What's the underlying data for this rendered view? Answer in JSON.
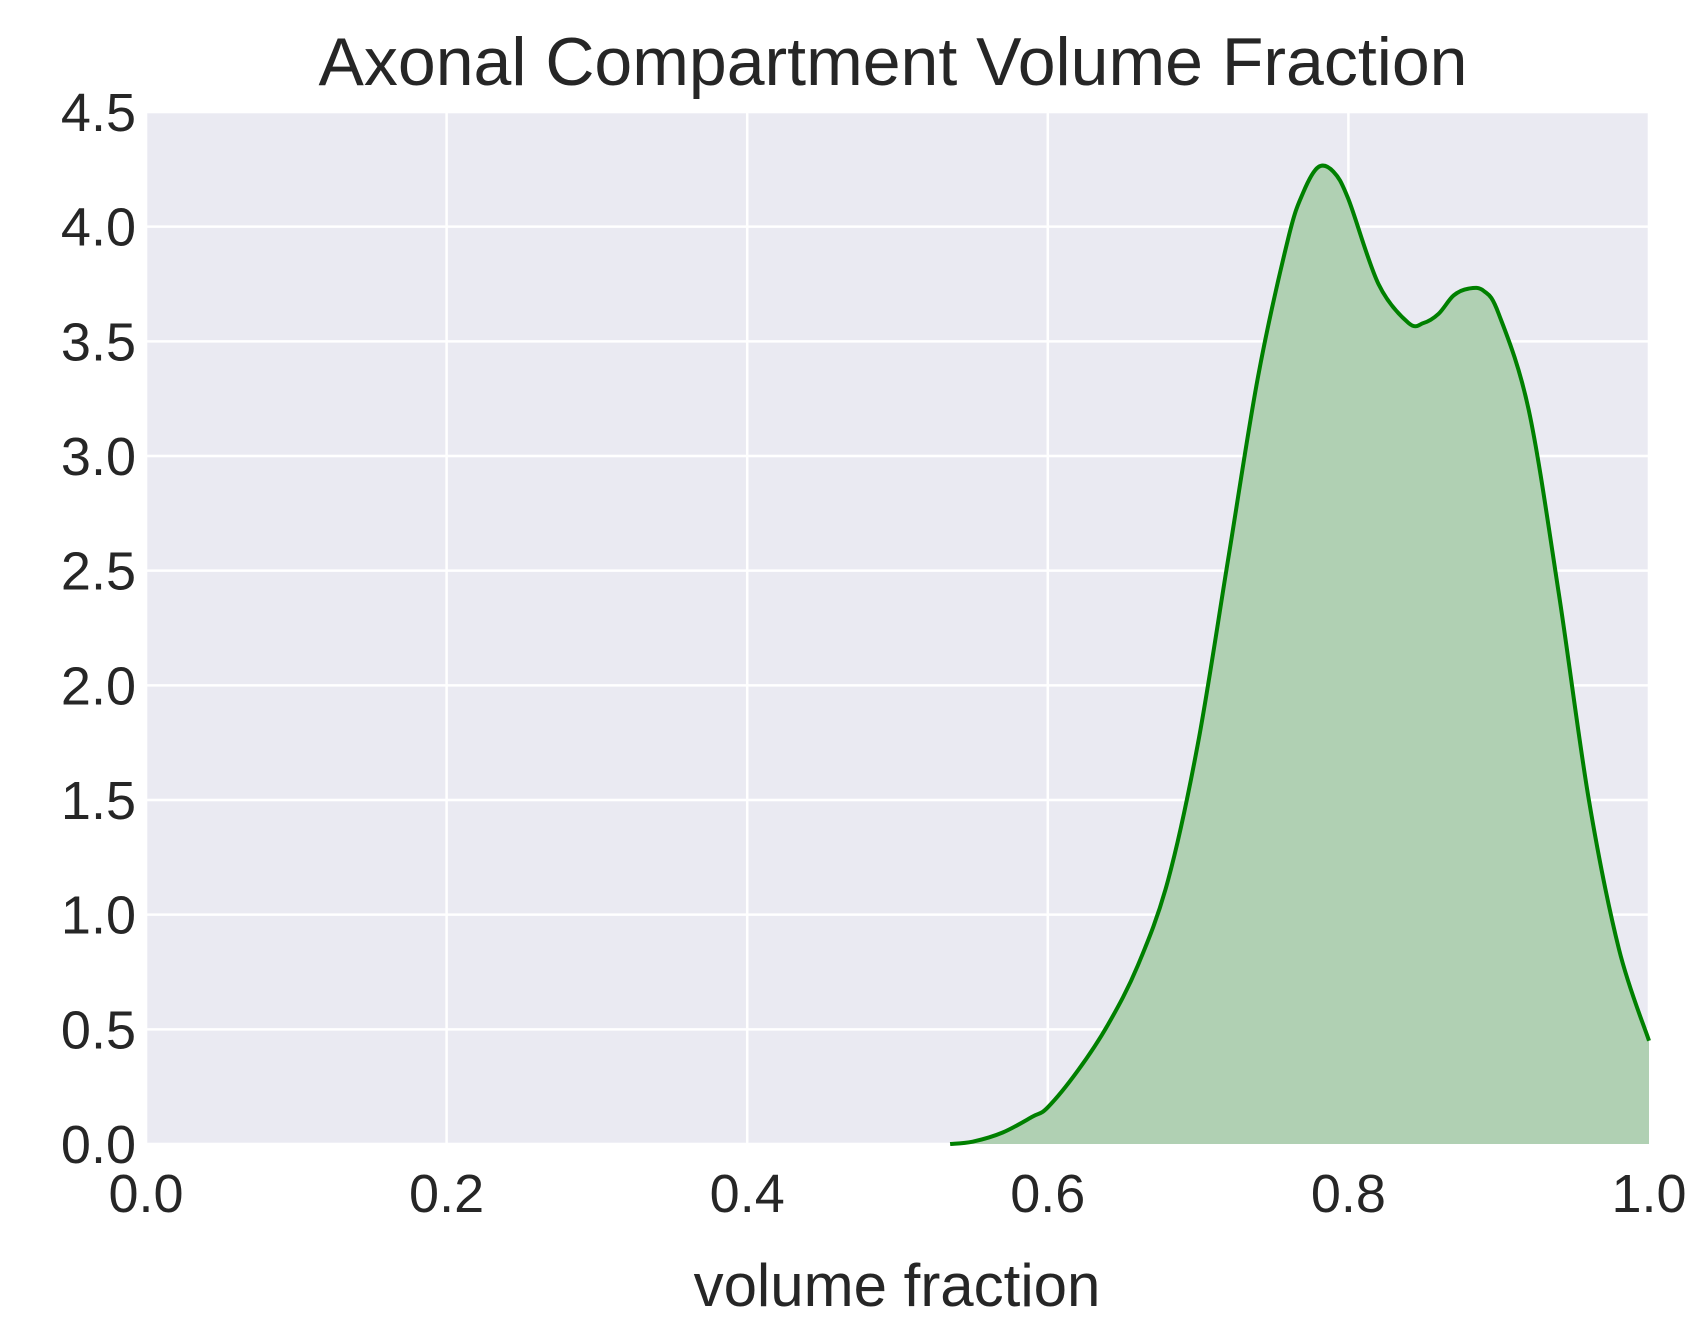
{
  "chart_data": {
    "type": "area",
    "title": "Axonal Compartment Volume Fraction",
    "xlabel": "volume fraction",
    "ylabel": "",
    "xlim": [
      0.0,
      1.0
    ],
    "ylim": [
      0.0,
      4.5
    ],
    "x_ticks": [
      "0.0",
      "0.2",
      "0.4",
      "0.6",
      "0.8",
      "1.0"
    ],
    "y_ticks": [
      "0.0",
      "0.5",
      "1.0",
      "1.5",
      "2.0",
      "2.5",
      "3.0",
      "3.5",
      "4.0",
      "4.5"
    ],
    "grid": true,
    "legend": "none",
    "colors": {
      "plot_background": "#eaeaf2",
      "line": "#008000",
      "fill": "#b0d0b3"
    },
    "series": [
      {
        "x": [
          0.535,
          0.55,
          0.57,
          0.59,
          0.6,
          0.62,
          0.64,
          0.66,
          0.68,
          0.7,
          0.72,
          0.74,
          0.76,
          0.77,
          0.78,
          0.79,
          0.8,
          0.82,
          0.84,
          0.85,
          0.86,
          0.87,
          0.88,
          0.89,
          0.9,
          0.92,
          0.94,
          0.96,
          0.98,
          1.0
        ],
        "y": [
          0.0,
          0.01,
          0.05,
          0.12,
          0.16,
          0.32,
          0.52,
          0.78,
          1.15,
          1.75,
          2.55,
          3.35,
          3.95,
          4.15,
          4.26,
          4.24,
          4.12,
          3.75,
          3.58,
          3.58,
          3.62,
          3.7,
          3.73,
          3.72,
          3.62,
          3.2,
          2.4,
          1.5,
          0.85,
          0.45
        ]
      }
    ]
  }
}
